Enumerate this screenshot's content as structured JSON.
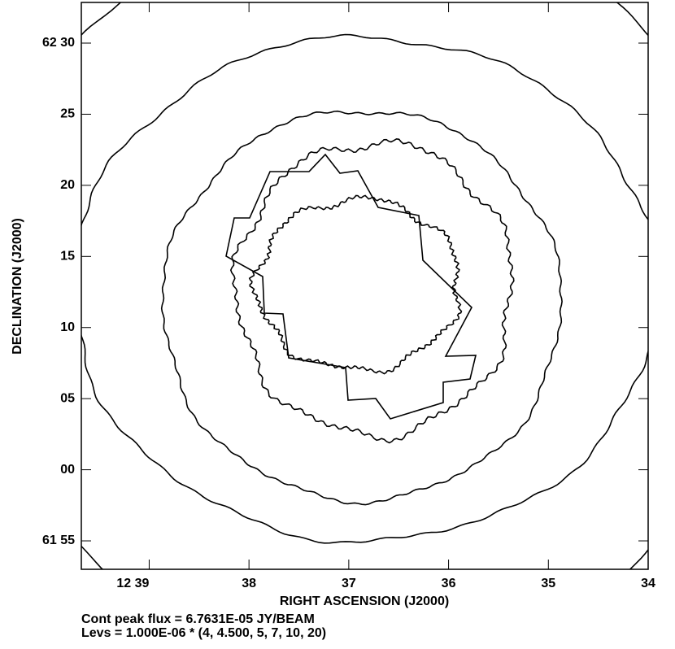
{
  "chart_data": {
    "type": "contour",
    "xlabel": "RIGHT ASCENSION (J2000)",
    "ylabel": "DECLINATION (J2000)",
    "xlim": [
      39.68,
      34
    ],
    "xticks": [
      {
        "value": 39,
        "label": "12 39"
      },
      38,
      37,
      36,
      35,
      34
    ],
    "ylim": [
      -7,
      32.86
    ],
    "yticks": [
      {
        "value": 30,
        "label": "62 30"
      },
      25,
      20,
      15,
      10,
      {
        "value": 5,
        "label": "05"
      },
      {
        "value": 0,
        "label": "00"
      },
      {
        "value": -5,
        "label": "61 55"
      }
    ],
    "notes": [
      "Cont peak flux =  6.7631E-05 JY/BEAM",
      "Levs = 1.000E-06 * (4, 4.500, 5, 7, 10, 20)"
    ],
    "color": "#000000"
  }
}
